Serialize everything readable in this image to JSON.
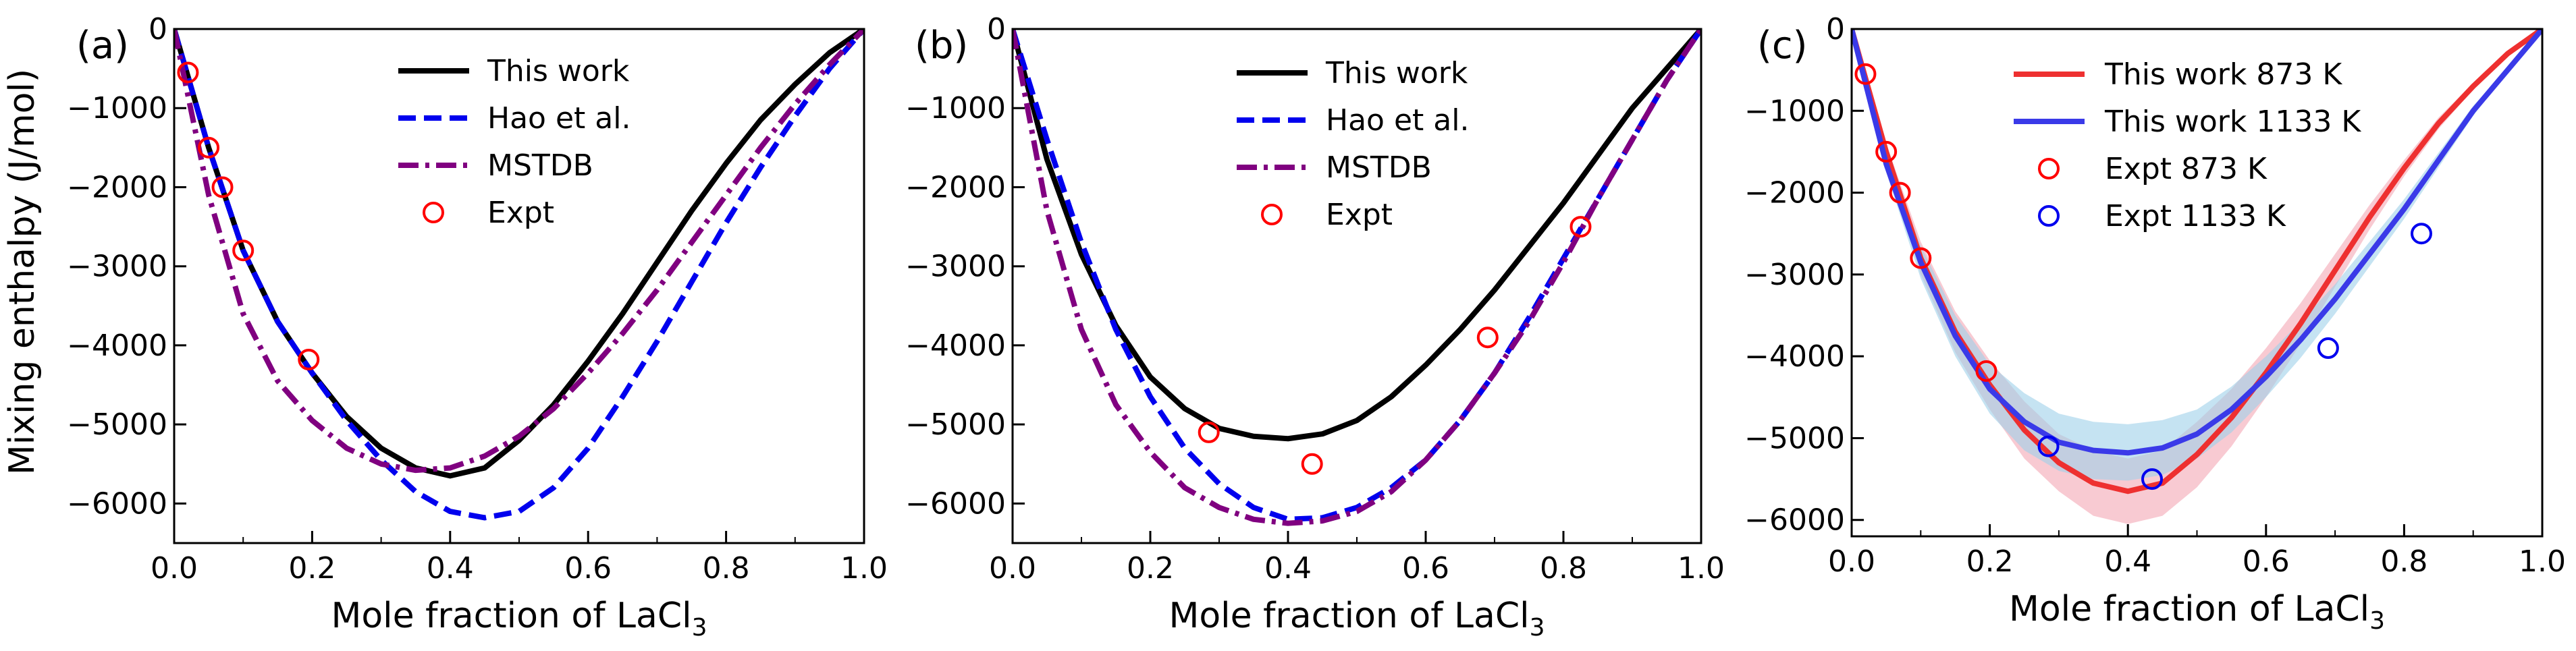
{
  "figure": {
    "ylabel": "Mixing enthalpy (J/mol)"
  },
  "chart_data": [
    {
      "type": "line",
      "panel_label": "(a)",
      "xlabel_main": "Mole fraction of LaCl",
      "xlabel_sub": "3",
      "xlim": [
        0,
        1
      ],
      "ylim": [
        -6500,
        0
      ],
      "x_ticks": [
        0.0,
        0.2,
        0.4,
        0.6,
        0.8,
        1.0
      ],
      "x_tick_labels": [
        "0.0",
        "0.2",
        "0.4",
        "0.6",
        "0.8",
        "1.0"
      ],
      "y_ticks": [
        0,
        -1000,
        -2000,
        -3000,
        -4000,
        -5000,
        -6000
      ],
      "y_tick_labels": [
        "0",
        "−1000",
        "−2000",
        "−3000",
        "−4000",
        "−5000",
        "−6000"
      ],
      "grid": false,
      "legend_position": "top-center",
      "series": [
        {
          "name": "This work",
          "style": "solid",
          "color": "#000000",
          "x": [
            0,
            0.05,
            0.1,
            0.15,
            0.2,
            0.25,
            0.3,
            0.35,
            0.4,
            0.45,
            0.5,
            0.55,
            0.6,
            0.65,
            0.7,
            0.75,
            0.8,
            0.85,
            0.9,
            0.95,
            1.0
          ],
          "y": [
            0,
            -1500,
            -2800,
            -3700,
            -4350,
            -4900,
            -5300,
            -5550,
            -5650,
            -5550,
            -5200,
            -4750,
            -4200,
            -3600,
            -2950,
            -2300,
            -1700,
            -1150,
            -700,
            -300,
            0
          ]
        },
        {
          "name": "Hao et al.",
          "style": "dashed",
          "color": "#0000ee",
          "x": [
            0,
            0.05,
            0.1,
            0.15,
            0.2,
            0.25,
            0.3,
            0.35,
            0.4,
            0.45,
            0.5,
            0.55,
            0.6,
            0.65,
            0.7,
            0.75,
            0.8,
            0.85,
            0.9,
            0.95,
            1.0
          ],
          "y": [
            0,
            -1500,
            -2800,
            -3700,
            -4350,
            -4950,
            -5450,
            -5850,
            -6100,
            -6180,
            -6100,
            -5800,
            -5300,
            -4650,
            -3950,
            -3200,
            -2450,
            -1750,
            -1100,
            -500,
            0
          ]
        },
        {
          "name": "MSTDB",
          "style": "dashdot",
          "color": "#800080",
          "x": [
            0,
            0.05,
            0.1,
            0.15,
            0.2,
            0.25,
            0.3,
            0.35,
            0.4,
            0.45,
            0.5,
            0.55,
            0.6,
            0.65,
            0.7,
            0.75,
            0.8,
            0.85,
            0.9,
            0.95,
            1.0
          ],
          "y": [
            0,
            -2100,
            -3600,
            -4450,
            -4950,
            -5300,
            -5500,
            -5580,
            -5550,
            -5400,
            -5150,
            -4800,
            -4350,
            -3850,
            -3300,
            -2700,
            -2100,
            -1500,
            -950,
            -450,
            0
          ]
        },
        {
          "name": "Expt",
          "style": "marker",
          "color": "#ff0000",
          "x": [
            0.02,
            0.05,
            0.07,
            0.1,
            0.195
          ],
          "y": [
            -550,
            -1500,
            -2000,
            -2800,
            -4180
          ]
        }
      ]
    },
    {
      "type": "line",
      "panel_label": "(b)",
      "xlabel_main": "Mole fraction of LaCl",
      "xlabel_sub": "3",
      "xlim": [
        0,
        1
      ],
      "ylim": [
        -6500,
        0
      ],
      "x_ticks": [
        0.0,
        0.2,
        0.4,
        0.6,
        0.8,
        1.0
      ],
      "x_tick_labels": [
        "0.0",
        "0.2",
        "0.4",
        "0.6",
        "0.8",
        "1.0"
      ],
      "y_ticks": [
        0,
        -1000,
        -2000,
        -3000,
        -4000,
        -5000,
        -6000
      ],
      "y_tick_labels": [
        "0",
        "−1000",
        "−2000",
        "−3000",
        "−4000",
        "−5000",
        "−6000"
      ],
      "grid": false,
      "legend_position": "top-center",
      "series": [
        {
          "name": "This work",
          "style": "solid",
          "color": "#000000",
          "x": [
            0,
            0.05,
            0.1,
            0.15,
            0.2,
            0.25,
            0.3,
            0.35,
            0.4,
            0.45,
            0.5,
            0.55,
            0.6,
            0.65,
            0.7,
            0.75,
            0.8,
            0.85,
            0.9,
            0.95,
            1.0
          ],
          "y": [
            0,
            -1650,
            -2850,
            -3750,
            -4400,
            -4800,
            -5050,
            -5150,
            -5180,
            -5120,
            -4950,
            -4650,
            -4250,
            -3800,
            -3300,
            -2750,
            -2200,
            -1600,
            -1000,
            -500,
            0
          ]
        },
        {
          "name": "Hao et al.",
          "style": "dashed",
          "color": "#0000ee",
          "x": [
            0,
            0.05,
            0.1,
            0.15,
            0.2,
            0.25,
            0.3,
            0.35,
            0.4,
            0.45,
            0.5,
            0.55,
            0.6,
            0.65,
            0.7,
            0.75,
            0.8,
            0.85,
            0.9,
            0.95,
            1.0
          ],
          "y": [
            0,
            -1400,
            -2700,
            -3800,
            -4650,
            -5300,
            -5750,
            -6050,
            -6200,
            -6180,
            -6050,
            -5800,
            -5450,
            -4950,
            -4350,
            -3650,
            -2900,
            -2150,
            -1400,
            -650,
            0
          ]
        },
        {
          "name": "MSTDB",
          "style": "dashdot",
          "color": "#800080",
          "x": [
            0,
            0.05,
            0.1,
            0.15,
            0.2,
            0.25,
            0.3,
            0.35,
            0.4,
            0.45,
            0.5,
            0.55,
            0.6,
            0.65,
            0.7,
            0.75,
            0.8,
            0.85,
            0.9,
            0.95,
            1.0
          ],
          "y": [
            0,
            -2300,
            -3800,
            -4750,
            -5350,
            -5800,
            -6050,
            -6200,
            -6250,
            -6220,
            -6100,
            -5850,
            -5450,
            -4950,
            -4350,
            -3700,
            -2950,
            -2150,
            -1400,
            -650,
            0
          ]
        },
        {
          "name": "Expt",
          "style": "marker",
          "color": "#ff0000",
          "x": [
            0.285,
            0.435,
            0.69,
            0.825
          ],
          "y": [
            -5100,
            -5500,
            -3900,
            -2500
          ]
        }
      ]
    },
    {
      "type": "line",
      "panel_label": "(c)",
      "xlabel_main": "Mole fraction of LaCl",
      "xlabel_sub": "3",
      "xlim": [
        0,
        1
      ],
      "ylim": [
        -6200,
        0
      ],
      "x_ticks": [
        0.0,
        0.2,
        0.4,
        0.6,
        0.8,
        1.0
      ],
      "x_tick_labels": [
        "0.0",
        "0.2",
        "0.4",
        "0.6",
        "0.8",
        "1.0"
      ],
      "y_ticks": [
        0,
        -1000,
        -2000,
        -3000,
        -4000,
        -5000,
        -6000
      ],
      "y_tick_labels": [
        "0",
        "−1000",
        "−2000",
        "−3000",
        "−4000",
        "−5000",
        "−6000"
      ],
      "grid": false,
      "legend_position": "top-center",
      "series": [
        {
          "name": "This work 873 K",
          "style": "solid",
          "color": "#ee3030",
          "band_color": "#f4a6b4",
          "x": [
            0,
            0.05,
            0.1,
            0.15,
            0.2,
            0.25,
            0.3,
            0.35,
            0.4,
            0.45,
            0.5,
            0.55,
            0.6,
            0.65,
            0.7,
            0.75,
            0.8,
            0.85,
            0.9,
            0.95,
            1.0
          ],
          "y": [
            0,
            -1500,
            -2800,
            -3700,
            -4350,
            -4900,
            -5300,
            -5550,
            -5650,
            -5550,
            -5200,
            -4750,
            -4200,
            -3600,
            -2950,
            -2300,
            -1700,
            -1150,
            -700,
            -300,
            0
          ],
          "lower": [
            0,
            -1600,
            -3000,
            -3950,
            -4650,
            -5250,
            -5650,
            -5950,
            -6050,
            -5950,
            -5600,
            -5100,
            -4500,
            -3850,
            -3150,
            -2450,
            -1800,
            -1220,
            -740,
            -320,
            0
          ],
          "upper": [
            0,
            -1400,
            -2600,
            -3450,
            -4050,
            -4550,
            -4950,
            -5150,
            -5250,
            -5150,
            -4800,
            -4400,
            -3900,
            -3350,
            -2750,
            -2150,
            -1600,
            -1080,
            -660,
            -280,
            0
          ]
        },
        {
          "name": "This work 1133 K",
          "style": "solid",
          "color": "#3a3ae8",
          "band_color": "#9fd0ea",
          "x": [
            0,
            0.05,
            0.1,
            0.15,
            0.2,
            0.25,
            0.3,
            0.35,
            0.4,
            0.45,
            0.5,
            0.55,
            0.6,
            0.65,
            0.7,
            0.75,
            0.8,
            0.85,
            0.9,
            0.95,
            1.0
          ],
          "y": [
            0,
            -1650,
            -2850,
            -3750,
            -4400,
            -4800,
            -5050,
            -5150,
            -5180,
            -5120,
            -4950,
            -4650,
            -4250,
            -3800,
            -3300,
            -2750,
            -2200,
            -1600,
            -1000,
            -500,
            0
          ],
          "lower": [
            0,
            -1750,
            -3050,
            -4000,
            -4700,
            -5150,
            -5400,
            -5500,
            -5520,
            -5450,
            -5250,
            -4930,
            -4500,
            -4020,
            -3480,
            -2900,
            -2320,
            -1690,
            -1060,
            -520,
            0
          ],
          "upper": [
            0,
            -1550,
            -2650,
            -3500,
            -4100,
            -4450,
            -4700,
            -4800,
            -4830,
            -4780,
            -4650,
            -4370,
            -4000,
            -3580,
            -3120,
            -2600,
            -2080,
            -1510,
            -940,
            -480,
            0
          ]
        },
        {
          "name": "Expt 873 K",
          "style": "marker",
          "color": "#ff0000",
          "x": [
            0.02,
            0.05,
            0.07,
            0.1,
            0.195
          ],
          "y": [
            -550,
            -1500,
            -2000,
            -2800,
            -4180
          ]
        },
        {
          "name": "Expt 1133 K",
          "style": "marker",
          "color": "#0000ee",
          "x": [
            0.285,
            0.435,
            0.69,
            0.825
          ],
          "y": [
            -5100,
            -5500,
            -3900,
            -2500
          ]
        }
      ]
    }
  ]
}
